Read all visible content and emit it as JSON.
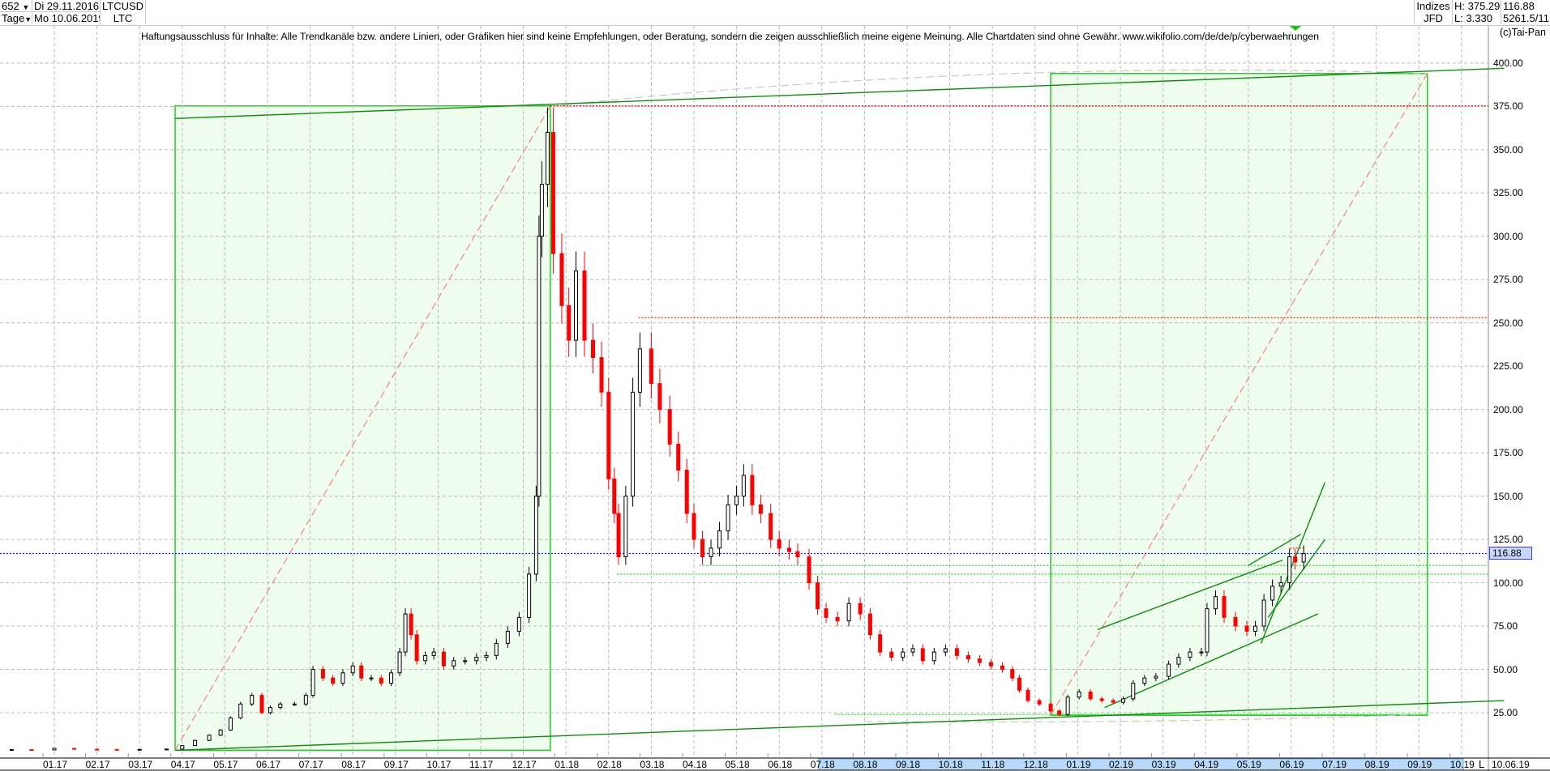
{
  "header": {
    "count": "652",
    "period": "Tage",
    "start_date": "Di 29.11.2016",
    "end_date": "Mo 10.06.2019",
    "symbol": "LTCUSD",
    "name": "LTC",
    "group": "Indizes",
    "source": "JFD",
    "high": "H: 375.29",
    "low": "L: 3.330",
    "last": "116.88",
    "extra": "5261.5/11…"
  },
  "disclaimer": "Haftungsausschluss für Inhalte: Alle Trendkanäle bzw. andere Linien, oder Grafiken hier sind keine Empfehlungen, oder Beratung, sondern die zeigen ausschließlich meine eigene Meinung. Alle Chartdaten sind ohne Gewähr.  www.wikifolio.com/de/de/p/cyberwaehrungen",
  "copyright": "(c)Tai-Pan",
  "footer": {
    "mode": "L",
    "date": "10.06.19"
  },
  "colors": {
    "up": "#000000",
    "down": "#ff0000",
    "box_fill": "#eefdee",
    "box_line": "#22cc22",
    "trend": "#118811",
    "resistance": "#ff0000",
    "support": "#22dd22",
    "last_line": "#2222ff"
  },
  "chart_data": {
    "type": "candlestick",
    "ylim": [
      0,
      412
    ],
    "y_ticks": [
      "25.00",
      "50.00",
      "75.00",
      "100.00",
      "125.00",
      "150.00",
      "175.00",
      "200.00",
      "225.00",
      "250.00",
      "275.00",
      "300.00",
      "325.00",
      "350.00",
      "375.00",
      "400.00"
    ],
    "x_ticks": [
      "01.17",
      "02.17",
      "03.17",
      "04.17",
      "05.17",
      "06.17",
      "07.17",
      "08.17",
      "09.17",
      "10.17",
      "11.17",
      "12.17",
      "01.18",
      "02.18",
      "03.18",
      "04.18",
      "05.18",
      "06.18",
      "07.18",
      "08.18",
      "09.18",
      "10.18",
      "11.18",
      "12.18",
      "01.19",
      "02.19",
      "03.19",
      "04.19",
      "05.19",
      "06.19",
      "07.19",
      "08.19",
      "09.19",
      "10.19"
    ],
    "grid": true,
    "last_value": 116.88,
    "closes": [
      [
        "2016-12-01",
        3.7
      ],
      [
        "2016-12-15",
        3.5
      ],
      [
        "2017-01-01",
        4.4
      ],
      [
        "2017-01-15",
        3.9
      ],
      [
        "2017-02-01",
        3.8
      ],
      [
        "2017-02-15",
        3.7
      ],
      [
        "2017-03-01",
        3.8
      ],
      [
        "2017-03-20",
        4.0
      ],
      [
        "2017-04-01",
        6
      ],
      [
        "2017-04-10",
        9
      ],
      [
        "2017-04-20",
        12
      ],
      [
        "2017-04-28",
        15
      ],
      [
        "2017-05-05",
        22
      ],
      [
        "2017-05-12",
        30
      ],
      [
        "2017-05-20",
        35
      ],
      [
        "2017-05-27",
        25
      ],
      [
        "2017-06-03",
        28
      ],
      [
        "2017-06-10",
        30
      ],
      [
        "2017-06-20",
        30
      ],
      [
        "2017-06-28",
        35
      ],
      [
        "2017-07-03",
        50
      ],
      [
        "2017-07-10",
        45
      ],
      [
        "2017-07-17",
        42
      ],
      [
        "2017-07-24",
        48
      ],
      [
        "2017-07-31",
        52
      ],
      [
        "2017-08-07",
        45
      ],
      [
        "2017-08-14",
        45
      ],
      [
        "2017-08-21",
        42
      ],
      [
        "2017-08-28",
        48
      ],
      [
        "2017-09-04",
        60
      ],
      [
        "2017-09-08",
        82
      ],
      [
        "2017-09-12",
        70
      ],
      [
        "2017-09-16",
        55
      ],
      [
        "2017-09-22",
        58
      ],
      [
        "2017-09-28",
        60
      ],
      [
        "2017-10-05",
        52
      ],
      [
        "2017-10-12",
        55
      ],
      [
        "2017-10-20",
        55
      ],
      [
        "2017-10-28",
        57
      ],
      [
        "2017-11-05",
        58
      ],
      [
        "2017-11-12",
        65
      ],
      [
        "2017-11-20",
        72
      ],
      [
        "2017-11-28",
        80
      ],
      [
        "2017-12-05",
        105
      ],
      [
        "2017-12-10",
        150
      ],
      [
        "2017-12-12",
        300
      ],
      [
        "2017-12-14",
        330
      ],
      [
        "2017-12-18",
        360
      ],
      [
        "2017-12-22",
        290
      ],
      [
        "2017-12-28",
        260
      ],
      [
        "2018-01-03",
        240
      ],
      [
        "2018-01-08",
        280
      ],
      [
        "2018-01-14",
        240
      ],
      [
        "2018-01-20",
        230
      ],
      [
        "2018-01-26",
        210
      ],
      [
        "2018-02-01",
        160
      ],
      [
        "2018-02-05",
        140
      ],
      [
        "2018-02-08",
        115
      ],
      [
        "2018-02-13",
        150
      ],
      [
        "2018-02-18",
        210
      ],
      [
        "2018-02-23",
        235
      ],
      [
        "2018-03-01",
        215
      ],
      [
        "2018-03-07",
        200
      ],
      [
        "2018-03-14",
        180
      ],
      [
        "2018-03-20",
        165
      ],
      [
        "2018-03-26",
        140
      ],
      [
        "2018-04-01",
        125
      ],
      [
        "2018-04-07",
        115
      ],
      [
        "2018-04-13",
        120
      ],
      [
        "2018-04-19",
        130
      ],
      [
        "2018-04-25",
        145
      ],
      [
        "2018-05-01",
        150
      ],
      [
        "2018-05-06",
        162
      ],
      [
        "2018-05-12",
        145
      ],
      [
        "2018-05-18",
        140
      ],
      [
        "2018-05-25",
        125
      ],
      [
        "2018-06-01",
        120
      ],
      [
        "2018-06-08",
        118
      ],
      [
        "2018-06-14",
        115
      ],
      [
        "2018-06-22",
        100
      ],
      [
        "2018-06-28",
        85
      ],
      [
        "2018-07-04",
        80
      ],
      [
        "2018-07-12",
        78
      ],
      [
        "2018-07-20",
        88
      ],
      [
        "2018-07-28",
        82
      ],
      [
        "2018-08-05",
        70
      ],
      [
        "2018-08-12",
        60
      ],
      [
        "2018-08-20",
        57
      ],
      [
        "2018-08-28",
        60
      ],
      [
        "2018-09-05",
        62
      ],
      [
        "2018-09-12",
        55
      ],
      [
        "2018-09-20",
        60
      ],
      [
        "2018-09-28",
        62
      ],
      [
        "2018-10-06",
        58
      ],
      [
        "2018-10-14",
        56
      ],
      [
        "2018-10-22",
        54
      ],
      [
        "2018-10-30",
        52
      ],
      [
        "2018-11-08",
        50
      ],
      [
        "2018-11-15",
        45
      ],
      [
        "2018-11-20",
        38
      ],
      [
        "2018-11-26",
        32
      ],
      [
        "2018-12-04",
        30
      ],
      [
        "2018-12-12",
        26
      ],
      [
        "2018-12-18",
        24
      ],
      [
        "2018-12-24",
        34
      ],
      [
        "2019-01-02",
        37
      ],
      [
        "2019-01-10",
        33
      ],
      [
        "2019-01-18",
        32
      ],
      [
        "2019-01-26",
        31
      ],
      [
        "2019-02-03",
        33
      ],
      [
        "2019-02-10",
        42
      ],
      [
        "2019-02-18",
        45
      ],
      [
        "2019-02-26",
        46
      ],
      [
        "2019-03-05",
        53
      ],
      [
        "2019-03-12",
        57
      ],
      [
        "2019-03-20",
        60
      ],
      [
        "2019-03-28",
        60
      ],
      [
        "2019-04-02",
        85
      ],
      [
        "2019-04-08",
        92
      ],
      [
        "2019-04-14",
        80
      ],
      [
        "2019-04-22",
        75
      ],
      [
        "2019-04-30",
        72
      ],
      [
        "2019-05-06",
        75
      ],
      [
        "2019-05-12",
        90
      ],
      [
        "2019-05-18",
        98
      ],
      [
        "2019-05-24",
        100
      ],
      [
        "2019-05-30",
        115
      ],
      [
        "2019-06-04",
        112
      ],
      [
        "2019-06-10",
        116.88
      ]
    ],
    "boxes": [
      {
        "from": "2017-03-26",
        "to": "2017-12-20",
        "low": 3.33,
        "high": 375.29
      },
      {
        "from": "2018-12-12",
        "to": "2019-09-07",
        "low": 23.5,
        "high": 394
      }
    ],
    "trend_lines": [
      {
        "from": [
          "2017-03-26",
          368
        ],
        "to": [
          "2019-10-31",
          397
        ]
      },
      {
        "from": [
          "2017-03-26",
          3.3
        ],
        "to": [
          "2019-10-31",
          32
        ]
      },
      {
        "from": [
          "2019-01-15",
          73
        ],
        "to": [
          "2019-05-25",
          113
        ]
      },
      {
        "from": [
          "2019-01-20",
          28
        ],
        "to": [
          "2019-06-20",
          82
        ]
      },
      {
        "from": [
          "2019-05-10",
          65
        ],
        "to": [
          "2019-06-25",
          158
        ]
      },
      {
        "from": [
          "2019-05-15",
          80
        ],
        "to": [
          "2019-06-25",
          125
        ]
      },
      {
        "from": [
          "2019-05-01",
          110
        ],
        "to": [
          "2019-06-08",
          128
        ]
      }
    ],
    "diagonals": [
      {
        "from": [
          "2017-03-26",
          3.3
        ],
        "to": [
          "2017-12-20",
          375.29
        ]
      },
      {
        "from": [
          "2018-12-12",
          23.5
        ],
        "to": [
          "2019-09-07",
          394
        ]
      }
    ],
    "arcs": [
      {
        "from": [
          "2017-12-20",
          375
        ],
        "to": [
          "2019-09-07",
          394
        ]
      },
      {
        "from": [
          "2018-08-01",
          20
        ],
        "to": [
          "2019-09-07",
          24
        ]
      }
    ],
    "resistance_levels": [
      {
        "value": 375.29,
        "from": "2017-12-20"
      },
      {
        "value": 253,
        "from": "2018-02-22"
      },
      {
        "value": 120,
        "from": "2019-05-30",
        "to": "2019-06-10"
      }
    ],
    "support_levels": [
      {
        "value": 105,
        "from": "2018-02-07"
      },
      {
        "value": 110,
        "from": "2018-04-05"
      },
      {
        "value": 24,
        "from": "2018-07-10",
        "to": "2019-09-07"
      }
    ]
  }
}
